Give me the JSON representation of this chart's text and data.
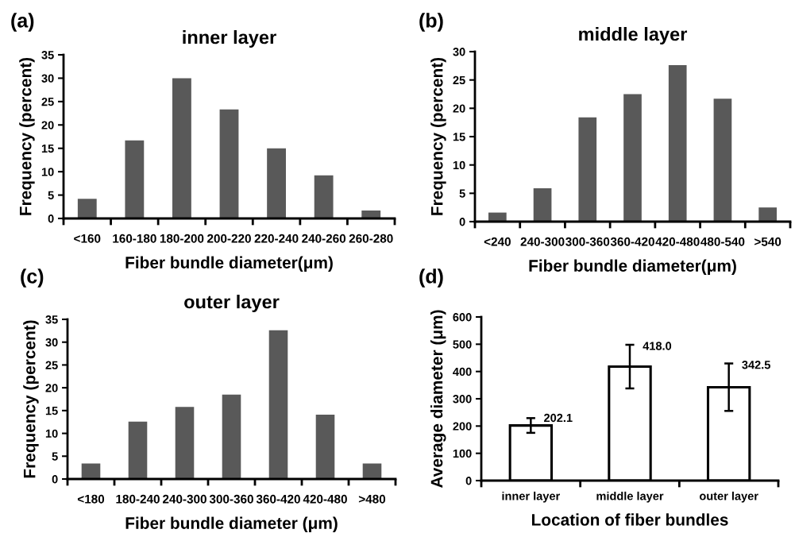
{
  "chart_data": [
    {
      "type": "bar",
      "title": "inner layer",
      "xlabel": "Fiber bundle diameter(μm)",
      "ylabel": "Frequency (percent)",
      "annotations": [
        "(a)"
      ],
      "categories": [
        "<160",
        "160-180",
        "180-200",
        "200-220",
        "220-240",
        "240-260",
        "260-280"
      ],
      "values": [
        4.2,
        16.7,
        30,
        23.3,
        15,
        9.2,
        1.7
      ],
      "color": "#595959",
      "ylim": [
        0,
        35
      ],
      "yticks": [
        0,
        5,
        10,
        15,
        20,
        25,
        30,
        35
      ],
      "grid": false,
      "legend": false
    },
    {
      "type": "bar",
      "title": "middle layer",
      "xlabel": "Fiber bundle diameter(μm)",
      "ylabel": "Frequency (percent)",
      "annotations": [
        "(b)"
      ],
      "categories": [
        "<240",
        "240-300",
        "300-360",
        "360-420",
        "420-480",
        "480-540",
        ">540"
      ],
      "values": [
        1.6,
        5.9,
        18.4,
        22.5,
        27.6,
        21.7,
        2.5
      ],
      "color": "#595959",
      "ylim": [
        0,
        30
      ],
      "yticks": [
        0,
        5,
        10,
        15,
        20,
        25,
        30
      ],
      "grid": false,
      "legend": false
    },
    {
      "type": "bar",
      "title": "outer layer",
      "xlabel": "Fiber bundle diameter (μm)",
      "ylabel": "Frequency (percent)",
      "annotations": [
        "(c)"
      ],
      "categories": [
        "<180",
        "180-240",
        "240-300",
        "300-360",
        "360-420",
        "420-480",
        ">480"
      ],
      "values": [
        3.4,
        12.6,
        15.8,
        18.5,
        32.6,
        14.1,
        3.4
      ],
      "color": "#595959",
      "ylim": [
        0,
        35
      ],
      "yticks": [
        0,
        5,
        10,
        15,
        20,
        25,
        30,
        35
      ],
      "grid": false,
      "legend": false
    },
    {
      "type": "bar",
      "xlabel": "Location of fiber bundles",
      "ylabel": "Average diameter (μm)",
      "annotations": [
        "(d)"
      ],
      "categories": [
        "inner layer",
        "middle layer",
        "outer layer"
      ],
      "values": [
        202.1,
        418.0,
        342.5
      ],
      "errors": [
        27,
        80,
        87
      ],
      "value_labels": [
        "202.1",
        "418.0",
        "342.5"
      ],
      "color": "#ffffff",
      "ylim": [
        0,
        600
      ],
      "yticks": [
        0,
        100,
        200,
        300,
        400,
        500,
        600
      ],
      "grid": false,
      "legend": false
    }
  ]
}
